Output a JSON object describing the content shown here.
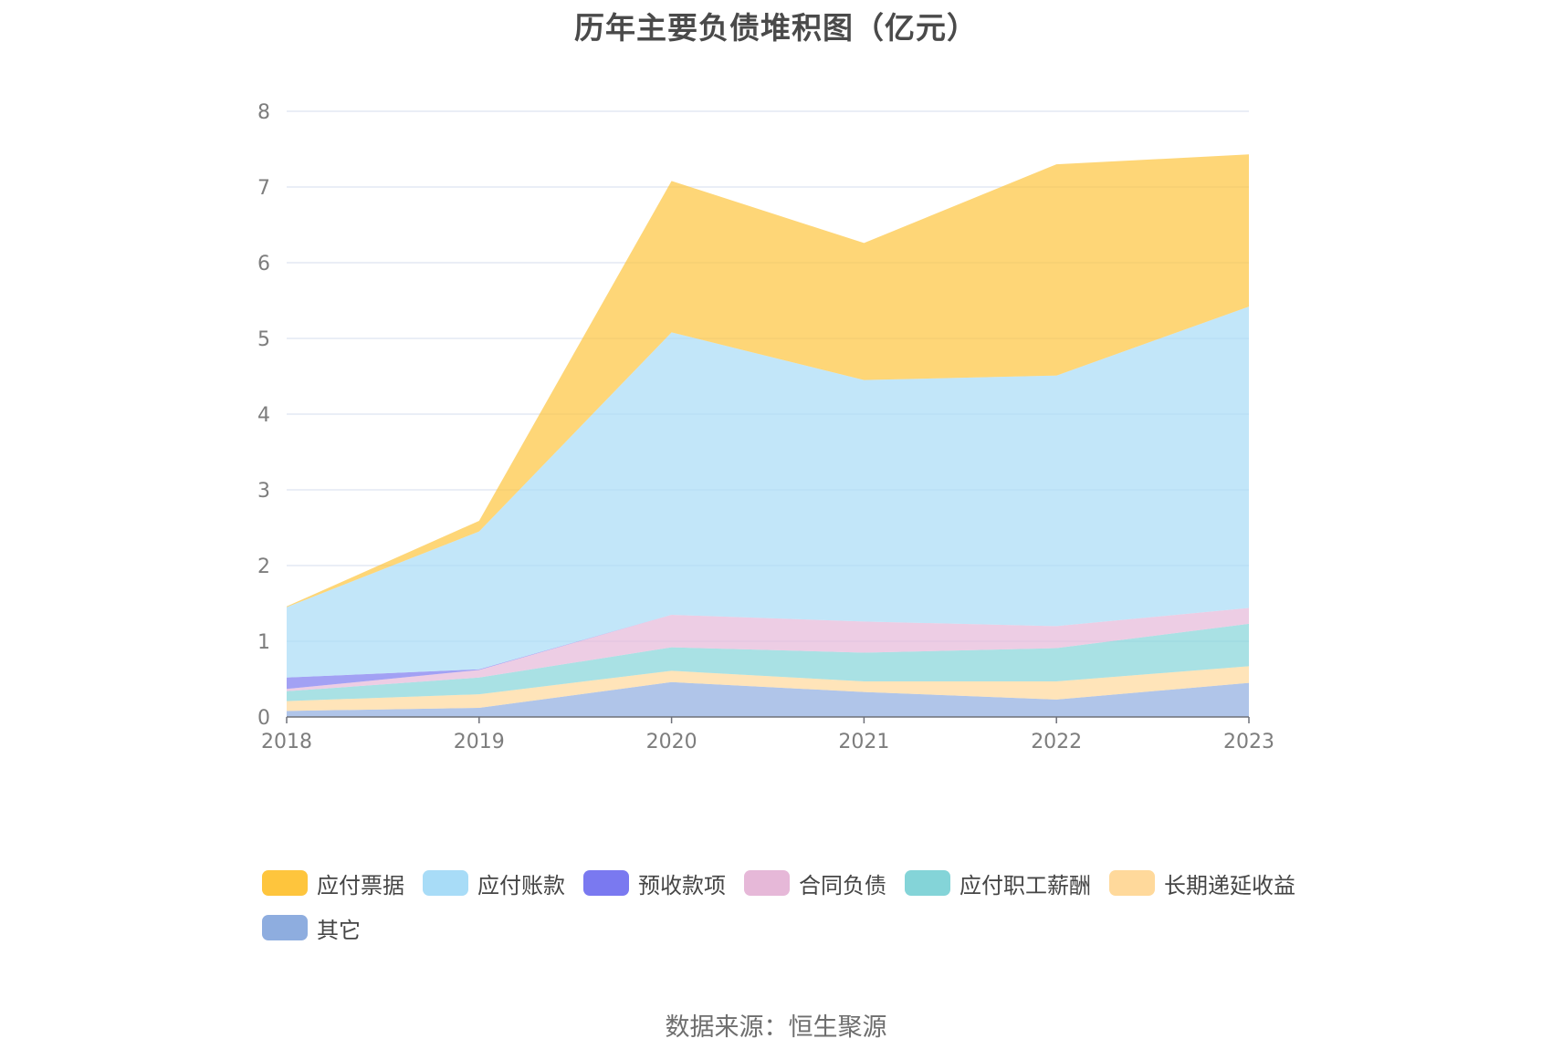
{
  "chart_data": {
    "type": "area",
    "stacked": true,
    "title": "历年主要负债堆积图（亿元）",
    "x": [
      "2018",
      "2019",
      "2020",
      "2021",
      "2022",
      "2023"
    ],
    "ylim": [
      0,
      8
    ],
    "yticks": [
      "0",
      "1",
      "2",
      "3",
      "4",
      "5",
      "6",
      "7",
      "8"
    ],
    "grid": true,
    "legend_position": "bottom",
    "series": [
      {
        "name": "其它",
        "color": "#8eaddf",
        "values": [
          0.08,
          0.12,
          0.46,
          0.33,
          0.23,
          0.45
        ]
      },
      {
        "name": "长期递延收益",
        "color": "#ffd99b",
        "values": [
          0.13,
          0.18,
          0.15,
          0.14,
          0.24,
          0.22
        ]
      },
      {
        "name": "应付职工薪酬",
        "color": "#84d4d8",
        "values": [
          0.13,
          0.22,
          0.31,
          0.38,
          0.44,
          0.56
        ]
      },
      {
        "name": "合同负债",
        "color": "#e6b8d8",
        "values": [
          0.03,
          0.1,
          0.43,
          0.41,
          0.29,
          0.21
        ]
      },
      {
        "name": "预收款项",
        "color": "#7a79f0",
        "values": [
          0.15,
          0.01,
          0.0,
          0.0,
          0.0,
          0.0
        ]
      },
      {
        "name": "应付账款",
        "color": "#a8dcf7",
        "values": [
          0.93,
          1.82,
          3.73,
          3.19,
          3.31,
          3.98
        ]
      },
      {
        "name": "应付票据",
        "color": "#fec53d",
        "values": [
          0.01,
          0.14,
          2.0,
          1.81,
          2.79,
          2.01
        ]
      }
    ],
    "legend_order": [
      "应付票据",
      "应付账款",
      "预收款项",
      "合同负债",
      "应付职工薪酬",
      "长期递延收益",
      "其它"
    ]
  },
  "source": "数据来源：恒生聚源"
}
